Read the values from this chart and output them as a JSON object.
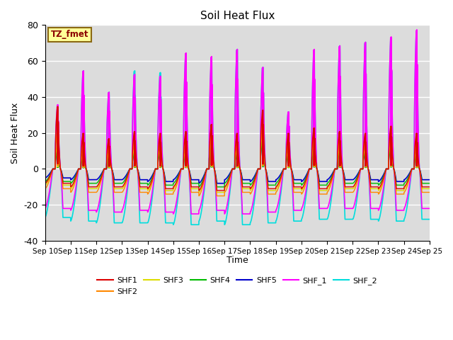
{
  "title": "Soil Heat Flux",
  "ylabel": "Soil Heat Flux",
  "xlabel": "Time",
  "annotation": "TZ_fmet",
  "annotation_color": "#8B0000",
  "annotation_bg": "#FFFF99",
  "annotation_border": "#8B6914",
  "ylim": [
    -40,
    80
  ],
  "xtick_labels": [
    "Sep 10",
    "Sep 11",
    "Sep 12",
    "Sep 13",
    "Sep 14",
    "Sep 15",
    "Sep 16",
    "Sep 17",
    "Sep 18",
    "Sep 19",
    "Sep 20",
    "Sep 21",
    "Sep 22",
    "Sep 23",
    "Sep 24",
    "Sep 25"
  ],
  "ytick_values": [
    -40,
    -20,
    0,
    20,
    40,
    60,
    80
  ],
  "series_order": [
    "SHF_2",
    "SHF_1",
    "SHF5",
    "SHF4",
    "SHF3",
    "SHF2",
    "SHF1"
  ],
  "series": {
    "SHF1": {
      "color": "#DD0000",
      "lw": 1.0
    },
    "SHF2": {
      "color": "#FF8800",
      "lw": 1.0
    },
    "SHF3": {
      "color": "#DDDD00",
      "lw": 1.0
    },
    "SHF4": {
      "color": "#00BB00",
      "lw": 1.0
    },
    "SHF5": {
      "color": "#0000CC",
      "lw": 1.2
    },
    "SHF_1": {
      "color": "#FF00FF",
      "lw": 1.2
    },
    "SHF_2": {
      "color": "#00DDDD",
      "lw": 1.2
    }
  },
  "legend_order": [
    "SHF1",
    "SHF2",
    "SHF3",
    "SHF4",
    "SHF5",
    "SHF_1",
    "SHF_2"
  ],
  "bg_color": "#DCDCDC",
  "grid_color": "#FFFFFF",
  "n_days": 15,
  "peaks_SHF1": [
    35,
    20,
    17,
    21,
    20,
    21,
    25,
    20,
    33,
    20,
    23,
    21,
    20,
    24,
    20
  ],
  "peaks_SHF2": [
    22,
    13,
    13,
    16,
    16,
    15,
    20,
    15,
    25,
    15,
    18,
    16,
    16,
    20,
    15
  ],
  "peaks_SHF3": [
    14,
    9,
    9,
    12,
    12,
    11,
    16,
    11,
    21,
    11,
    15,
    12,
    12,
    16,
    11
  ],
  "peaks_SHF4": [
    10,
    7,
    7,
    9,
    9,
    8,
    12,
    8,
    16,
    8,
    12,
    9,
    9,
    12,
    8
  ],
  "peaks_SHF5": [
    12,
    9,
    9,
    12,
    12,
    11,
    15,
    11,
    18,
    11,
    15,
    12,
    12,
    15,
    11
  ],
  "peaks_SHF_1": [
    36,
    55,
    43,
    53,
    52,
    65,
    63,
    67,
    57,
    32,
    67,
    69,
    71,
    74,
    78
  ],
  "peaks_SHF_2": [
    34,
    55,
    43,
    55,
    54,
    64,
    60,
    67,
    57,
    32,
    65,
    69,
    71,
    73,
    77
  ],
  "troughs_SHF1": [
    -8,
    -10,
    -10,
    -10,
    -11,
    -10,
    -12,
    -10,
    -11,
    -10,
    -11,
    -10,
    -10,
    -11,
    -10
  ],
  "troughs_SHF2": [
    -11,
    -13,
    -13,
    -13,
    -14,
    -13,
    -15,
    -13,
    -14,
    -13,
    -14,
    -13,
    -13,
    -14,
    -13
  ],
  "troughs_SHF3": [
    -9,
    -11,
    -11,
    -11,
    -12,
    -11,
    -13,
    -11,
    -12,
    -11,
    -12,
    -11,
    -11,
    -12,
    -11
  ],
  "troughs_SHF4": [
    -7,
    -8,
    -8,
    -8,
    -9,
    -8,
    -10,
    -8,
    -9,
    -8,
    -9,
    -8,
    -8,
    -9,
    -8
  ],
  "troughs_SHF5": [
    -5,
    -6,
    -6,
    -6,
    -7,
    -6,
    -8,
    -6,
    -7,
    -6,
    -7,
    -6,
    -6,
    -7,
    -6
  ],
  "troughs_SHF_1": [
    -22,
    -23,
    -24,
    -23,
    -24,
    -25,
    -23,
    -25,
    -24,
    -23,
    -22,
    -22,
    -22,
    -23,
    -22
  ],
  "troughs_SHF_2": [
    -27,
    -29,
    -30,
    -30,
    -30,
    -31,
    -29,
    -31,
    -30,
    -29,
    -28,
    -28,
    -28,
    -29,
    -28
  ]
}
